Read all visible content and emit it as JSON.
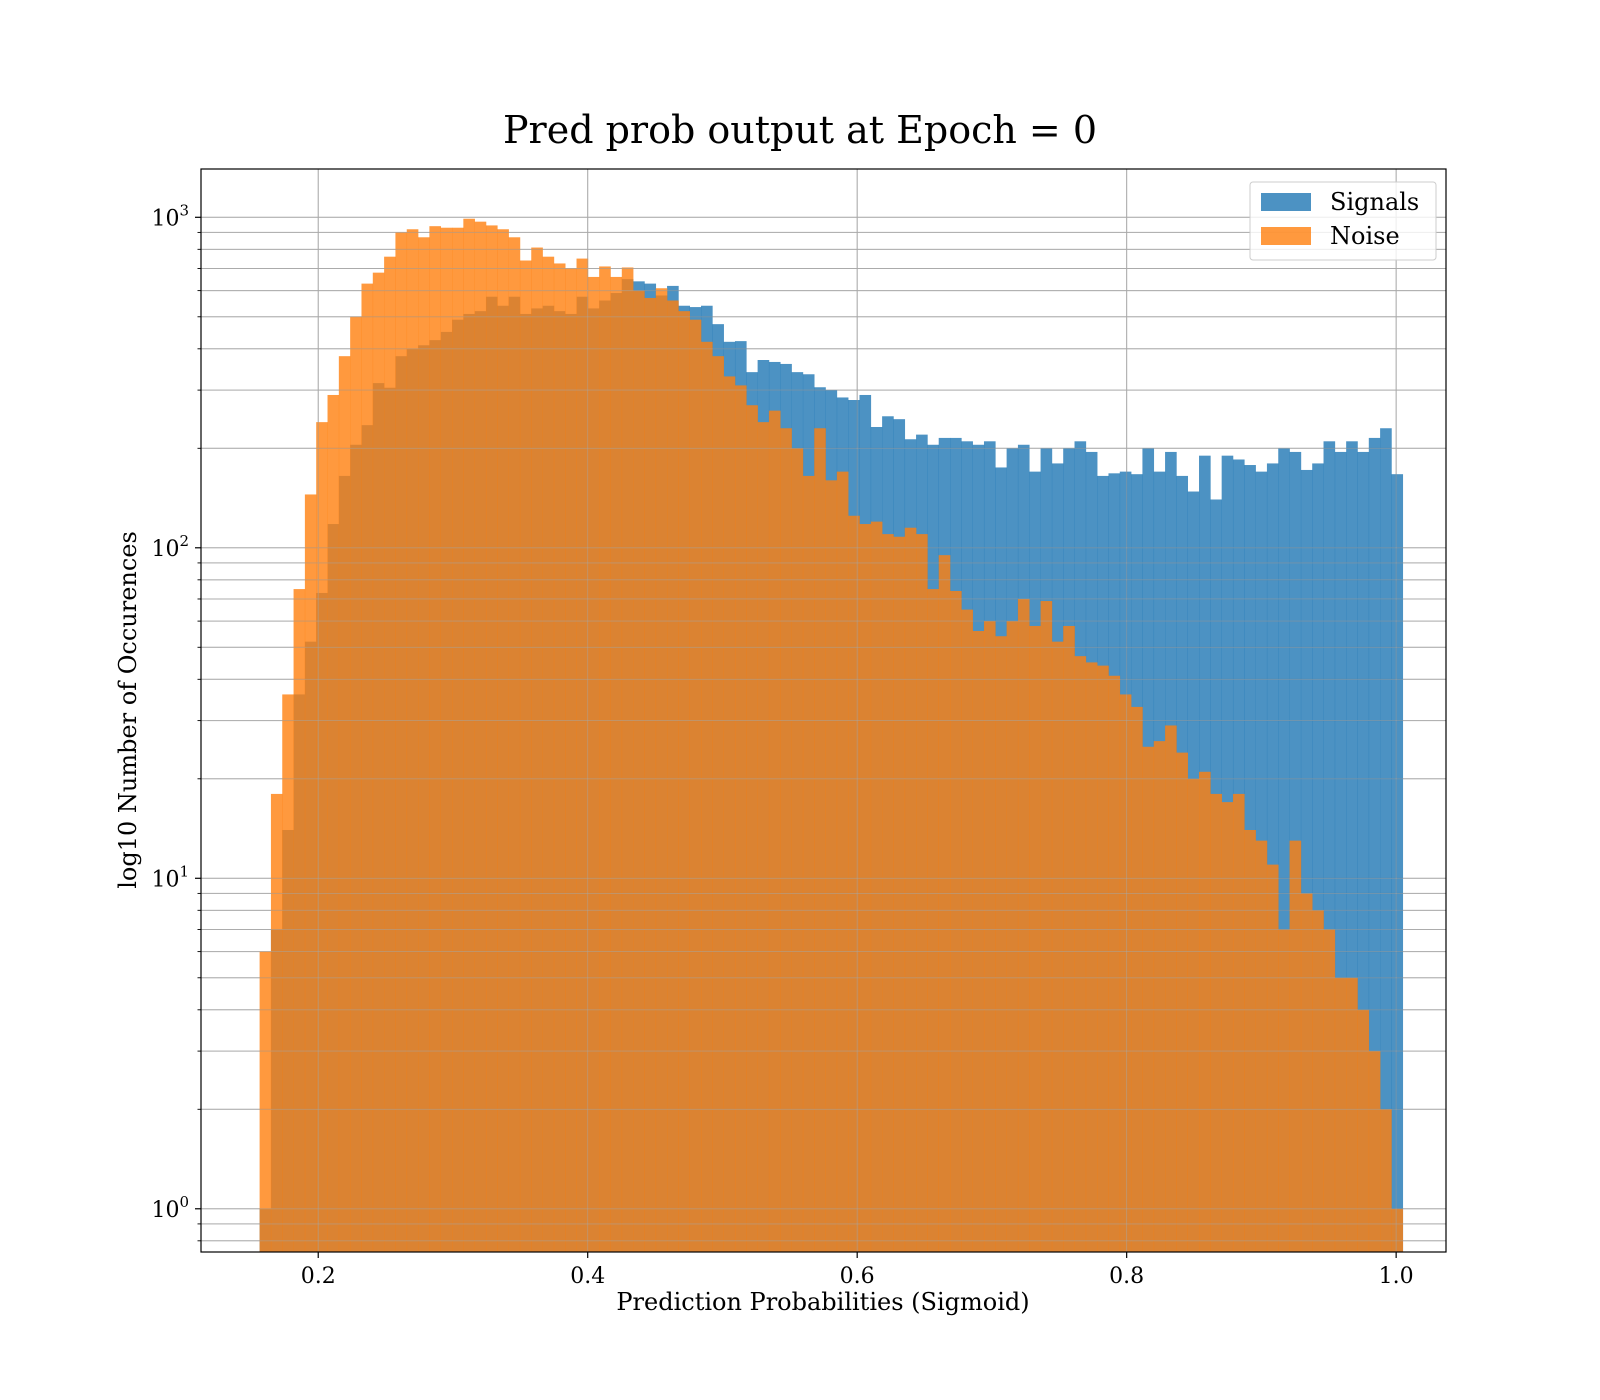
{
  "chart_data": {
    "type": "histogram",
    "title": "Pred prob output at Epoch = 0",
    "xlabel": "Prediction Probabilities (Sigmoid)",
    "ylabel": "log10 Number of Occurences",
    "xlim": [
      0.113,
      1.037
    ],
    "ylim": [
      0.74,
      1400
    ],
    "y_scale": "log",
    "grid": true,
    "legend_position": "upper right",
    "x_ticks": [
      {
        "value": 0.2,
        "label": "0.2"
      },
      {
        "value": 0.4,
        "label": "0.4"
      },
      {
        "value": 0.6,
        "label": "0.6"
      },
      {
        "value": 0.8,
        "label": "0.8"
      },
      {
        "value": 1.0,
        "label": "1.0"
      }
    ],
    "y_ticks": [
      {
        "value": 1,
        "base": "10",
        "exp": "0"
      },
      {
        "value": 10,
        "base": "10",
        "exp": "1"
      },
      {
        "value": 100,
        "base": "10",
        "exp": "2"
      },
      {
        "value": 1000,
        "base": "10",
        "exp": "3"
      }
    ],
    "series": [
      {
        "name": "Signals",
        "color": "#1f77b4",
        "opacity": 0.8,
        "bin_start": 0.1565,
        "bin_width": 0.0084,
        "values": [
          1,
          7,
          14,
          36,
          52,
          73,
          118,
          165,
          205,
          235,
          315,
          305,
          380,
          400,
          410,
          425,
          450,
          490,
          510,
          520,
          575,
          540,
          575,
          510,
          530,
          540,
          520,
          510,
          575,
          530,
          560,
          590,
          650,
          640,
          630,
          580,
          620,
          540,
          535,
          540,
          475,
          420,
          422,
          340,
          370,
          365,
          360,
          340,
          335,
          306,
          300,
          285,
          280,
          290,
          232,
          250,
          245,
          213,
          220,
          205,
          215,
          215,
          210,
          205,
          210,
          175,
          200,
          205,
          170,
          200,
          180,
          200,
          210,
          195,
          165,
          168,
          170,
          167,
          200,
          170,
          195,
          165,
          148,
          190,
          140,
          190,
          185,
          178,
          170,
          180,
          200,
          195,
          172,
          180,
          210,
          195,
          210,
          195,
          215,
          230,
          167
        ]
      },
      {
        "name": "Noise",
        "color": "#ff7f0e",
        "opacity": 0.8,
        "bin_start": 0.1565,
        "bin_width": 0.0084,
        "values": [
          6,
          18,
          36,
          75,
          145,
          240,
          290,
          380,
          500,
          630,
          680,
          760,
          900,
          920,
          870,
          940,
          930,
          930,
          990,
          970,
          945,
          920,
          870,
          740,
          810,
          760,
          725,
          700,
          750,
          660,
          710,
          660,
          705,
          600,
          570,
          610,
          560,
          520,
          490,
          420,
          380,
          330,
          310,
          270,
          240,
          260,
          230,
          200,
          165,
          230,
          160,
          170,
          125,
          118,
          120,
          110,
          108,
          115,
          110,
          75,
          95,
          74,
          65,
          56,
          60,
          54,
          60,
          70,
          58,
          69,
          52,
          58,
          47,
          45,
          44,
          41,
          36,
          33,
          25,
          26,
          29,
          24,
          20,
          21,
          18,
          17,
          18,
          14,
          13,
          11,
          7,
          13,
          9,
          8,
          7,
          5,
          5,
          4,
          3,
          2,
          1
        ]
      }
    ]
  }
}
